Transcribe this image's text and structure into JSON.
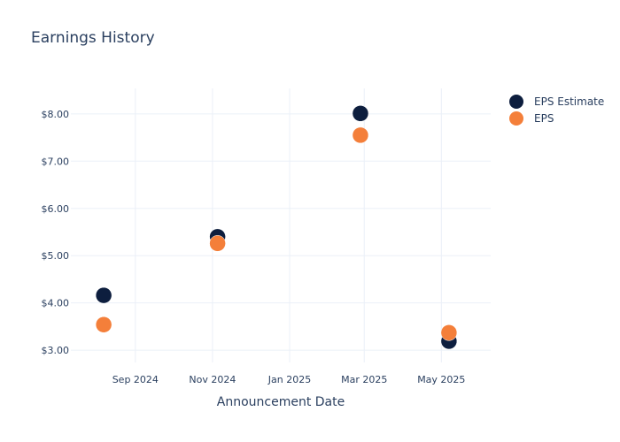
{
  "chart_data": {
    "type": "scatter",
    "title": "Earnings History",
    "xlabel": "Announcement Date",
    "ylabel": "",
    "x_range": [
      "2024-07-12",
      "2025-06-09"
    ],
    "y_range": [
      2.74,
      8.54
    ],
    "x_ticks": [
      {
        "date": "2024-09-01",
        "label": "Sep 2024"
      },
      {
        "date": "2024-11-01",
        "label": "Nov 2024"
      },
      {
        "date": "2025-01-01",
        "label": "Jan 2025"
      },
      {
        "date": "2025-03-01",
        "label": "Mar 2025"
      },
      {
        "date": "2025-05-01",
        "label": "May 2025"
      }
    ],
    "y_ticks": [
      {
        "value": 3,
        "label": "$3.00"
      },
      {
        "value": 4,
        "label": "$4.00"
      },
      {
        "value": 5,
        "label": "$5.00"
      },
      {
        "value": 6,
        "label": "$6.00"
      },
      {
        "value": 7,
        "label": "$7.00"
      },
      {
        "value": 8,
        "label": "$8.00"
      }
    ],
    "grid": true,
    "legend_position": "top-right",
    "series": [
      {
        "name": "EPS Estimate",
        "color": "#0d1e3e",
        "points": [
          {
            "x": "2024-08-07",
            "y": 4.16
          },
          {
            "x": "2024-11-05",
            "y": 5.4
          },
          {
            "x": "2025-02-26",
            "y": 8.01
          },
          {
            "x": "2025-05-07",
            "y": 3.19
          }
        ]
      },
      {
        "name": "EPS",
        "color": "#f47f3a",
        "points": [
          {
            "x": "2024-08-07",
            "y": 3.54
          },
          {
            "x": "2024-11-05",
            "y": 5.26
          },
          {
            "x": "2025-02-26",
            "y": 7.55
          },
          {
            "x": "2025-05-07",
            "y": 3.37
          }
        ]
      }
    ]
  }
}
